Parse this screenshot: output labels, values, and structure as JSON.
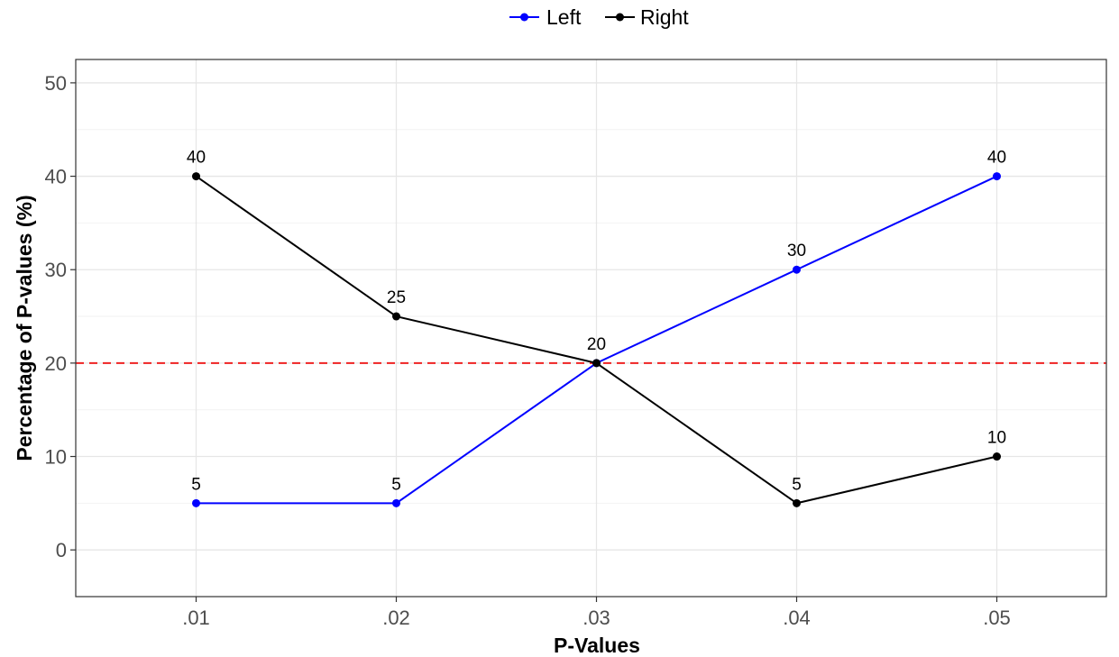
{
  "chart_data": {
    "type": "line",
    "categories": [
      ".01",
      ".02",
      ".03",
      ".04",
      ".05"
    ],
    "xlabel": "P-Values",
    "ylabel": "Percentage of P-values (%)",
    "ylim": [
      -5,
      52.5
    ],
    "yticks": [
      0,
      10,
      20,
      30,
      40,
      50
    ],
    "grid": true,
    "legend_position": "top",
    "reference_line": {
      "y": 20,
      "color": "#ee2222",
      "style": "dashed"
    },
    "series": [
      {
        "name": "Left",
        "color": "#0000ff",
        "values": [
          5,
          5,
          20,
          30,
          40
        ],
        "labels": [
          "5",
          "5",
          "",
          "30",
          "40"
        ]
      },
      {
        "name": "Right",
        "color": "#000000",
        "values": [
          40,
          25,
          20,
          5,
          10
        ],
        "labels": [
          "40",
          "25",
          "20",
          "5",
          "10"
        ]
      }
    ]
  }
}
